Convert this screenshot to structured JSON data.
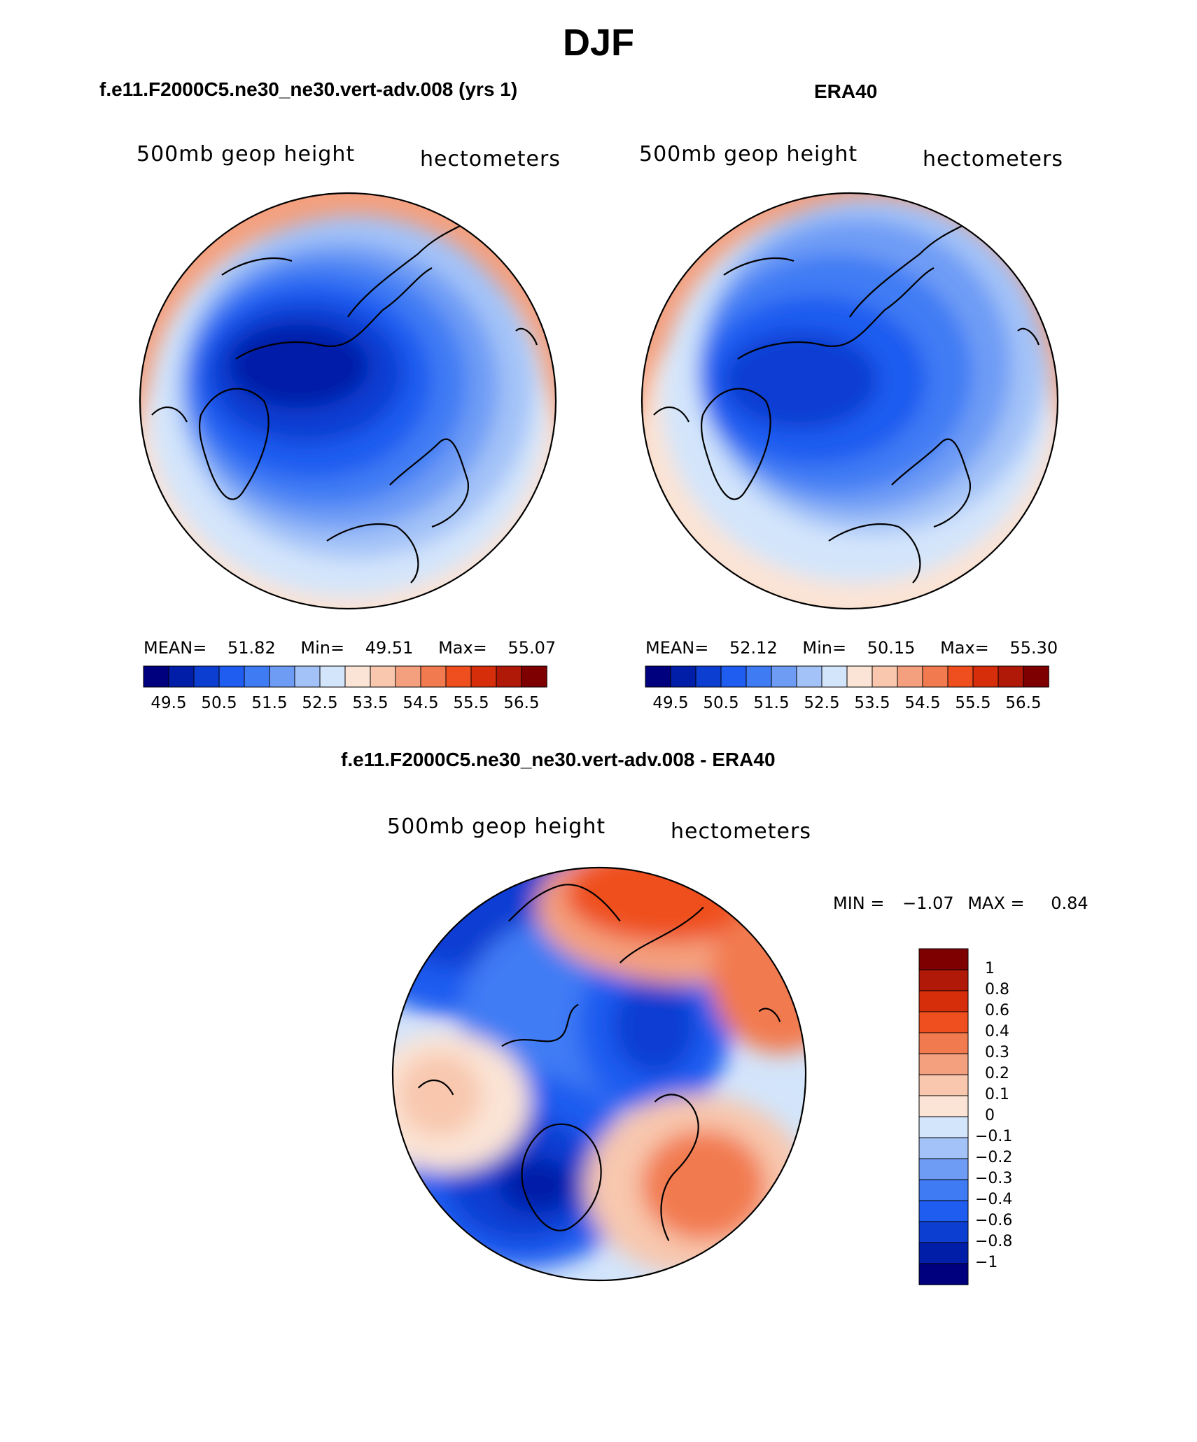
{
  "figure": {
    "title": "DJF"
  },
  "panels": [
    {
      "title": "f.e11.F2000C5.ne30_ne30.vert-adv.008 (yrs 1)",
      "variable_label": "500mb geop height",
      "units_label": "hectometers",
      "stats": {
        "mean_label": "MEAN=",
        "mean": "51.82",
        "min_label": "Min=",
        "min": "49.51",
        "max_label": "Max=",
        "max": "55.07"
      }
    },
    {
      "title": "ERA40",
      "variable_label": "500mb geop height",
      "units_label": "hectometers",
      "stats": {
        "mean_label": "MEAN=",
        "mean": "52.12",
        "min_label": "Min=",
        "min": "50.15",
        "max_label": "Max=",
        "max": "55.30"
      }
    }
  ],
  "difference_panel": {
    "title": "f.e11.F2000C5.ne30_ne30.vert-adv.008 - ERA40",
    "variable_label": "500mb geop height",
    "units_label": "hectometers",
    "min_label": "MIN =",
    "min": "−1.07",
    "max_label": "MAX =",
    "max": "0.84"
  },
  "chart_data": [
    {
      "type": "heatmap",
      "projection": "north polar stereographic",
      "title": "f.e11.F2000C5.ne30_ne30.vert-adv.008 (yrs 1)",
      "variable": "500mb geop height",
      "units": "hectometers",
      "mean": 51.82,
      "min": 49.51,
      "max": 55.07,
      "contour_levels": [
        49.5,
        50,
        50.5,
        51,
        51.5,
        52,
        52.5,
        53,
        53.5,
        54,
        54.5,
        55,
        55.5,
        56,
        56.5
      ],
      "colorbar_tick_labels": [
        "49.5",
        "50.5",
        "51.5",
        "52.5",
        "53.5",
        "54.5",
        "55.5",
        "56.5"
      ]
    },
    {
      "type": "heatmap",
      "projection": "north polar stereographic",
      "title": "ERA40",
      "variable": "500mb geop height",
      "units": "hectometers",
      "mean": 52.12,
      "min": 50.15,
      "max": 55.3,
      "contour_levels": [
        49.5,
        50,
        50.5,
        51,
        51.5,
        52,
        52.5,
        53,
        53.5,
        54,
        54.5,
        55,
        55.5,
        56,
        56.5
      ],
      "colorbar_tick_labels": [
        "49.5",
        "50.5",
        "51.5",
        "52.5",
        "53.5",
        "54.5",
        "55.5",
        "56.5"
      ]
    },
    {
      "type": "heatmap",
      "projection": "north polar stereographic",
      "title": "f.e11.F2000C5.ne30_ne30.vert-adv.008 - ERA40",
      "variable": "500mb geop height difference",
      "units": "hectometers",
      "min": -1.07,
      "max": 0.84,
      "contour_levels": [
        -1,
        -0.8,
        -0.6,
        -0.4,
        -0.3,
        -0.2,
        -0.1,
        0,
        0.1,
        0.2,
        0.3,
        0.4,
        0.6,
        0.8,
        1
      ],
      "colorbar_tick_labels": [
        "1",
        "0.8",
        "0.6",
        "0.4",
        "0.3",
        "0.2",
        "0.1",
        "0",
        "−0.1",
        "−0.2",
        "−0.3",
        "−0.4",
        "−0.6",
        "−0.8",
        "−1"
      ]
    }
  ],
  "palette": [
    "#00007f",
    "#001ea8",
    "#0d3ed2",
    "#1f5cf0",
    "#3f7cf4",
    "#6e9cf5",
    "#a3c2f8",
    "#d3e5fb",
    "#fbe4d5",
    "#f8c7ae",
    "#f4a07e",
    "#f27a4f",
    "#ef4f1e",
    "#d62e0a",
    "#b01808",
    "#7f0000"
  ],
  "colors": {
    "coastline": "#000000",
    "ocean_background": "#ffffff"
  }
}
